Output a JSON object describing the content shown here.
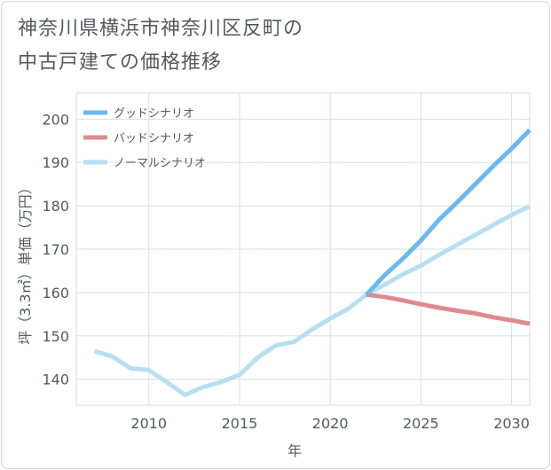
{
  "title_line1": "神奈川県横浜市神奈川区反町の",
  "title_line2": "中古戸建ての価格推移",
  "chart_data": {
    "type": "line",
    "xlabel": "年",
    "ylabel": "坪（3.3㎡）単価（万円）",
    "xlim": [
      2006,
      2031
    ],
    "ylim": [
      134,
      206
    ],
    "xticks": [
      2010,
      2015,
      2020,
      2025,
      2030
    ],
    "yticks": [
      140,
      150,
      160,
      170,
      180,
      190,
      200
    ],
    "grid": true,
    "legend_position": "top-left",
    "series": [
      {
        "name": "グッドシナリオ",
        "color": "#6cb8ef",
        "x": [
          2022,
          2023,
          2024,
          2025,
          2026,
          2027,
          2028,
          2029,
          2030,
          2031
        ],
        "y": [
          159.5,
          164,
          167.8,
          172,
          176.8,
          180.8,
          185,
          189.2,
          193.2,
          197.5
        ]
      },
      {
        "name": "バッドシナリオ",
        "color": "#de8a8e",
        "x": [
          2022,
          2023,
          2024,
          2025,
          2026,
          2027,
          2028,
          2029,
          2030,
          2031
        ],
        "y": [
          159.5,
          159,
          158.2,
          157.3,
          156.5,
          155.8,
          155.2,
          154.3,
          153.6,
          152.8
        ]
      },
      {
        "name": "ノーマルシナリオ",
        "color": "#b8dff0",
        "x": [
          2007,
          2008,
          2009,
          2010,
          2011,
          2012,
          2013,
          2014,
          2015,
          2016,
          2017,
          2018,
          2019,
          2020,
          2021,
          2022,
          2023,
          2024,
          2025,
          2026,
          2027,
          2028,
          2029,
          2030,
          2031
        ],
        "y": [
          146.5,
          145.2,
          142.5,
          142.1,
          139.3,
          136.4,
          138.2,
          139.4,
          141,
          145,
          147.8,
          148.6,
          151.5,
          154,
          156.3,
          159.5,
          161.8,
          164.2,
          166.2,
          168.7,
          171,
          173.3,
          175.6,
          177.9,
          179.9
        ]
      }
    ]
  }
}
